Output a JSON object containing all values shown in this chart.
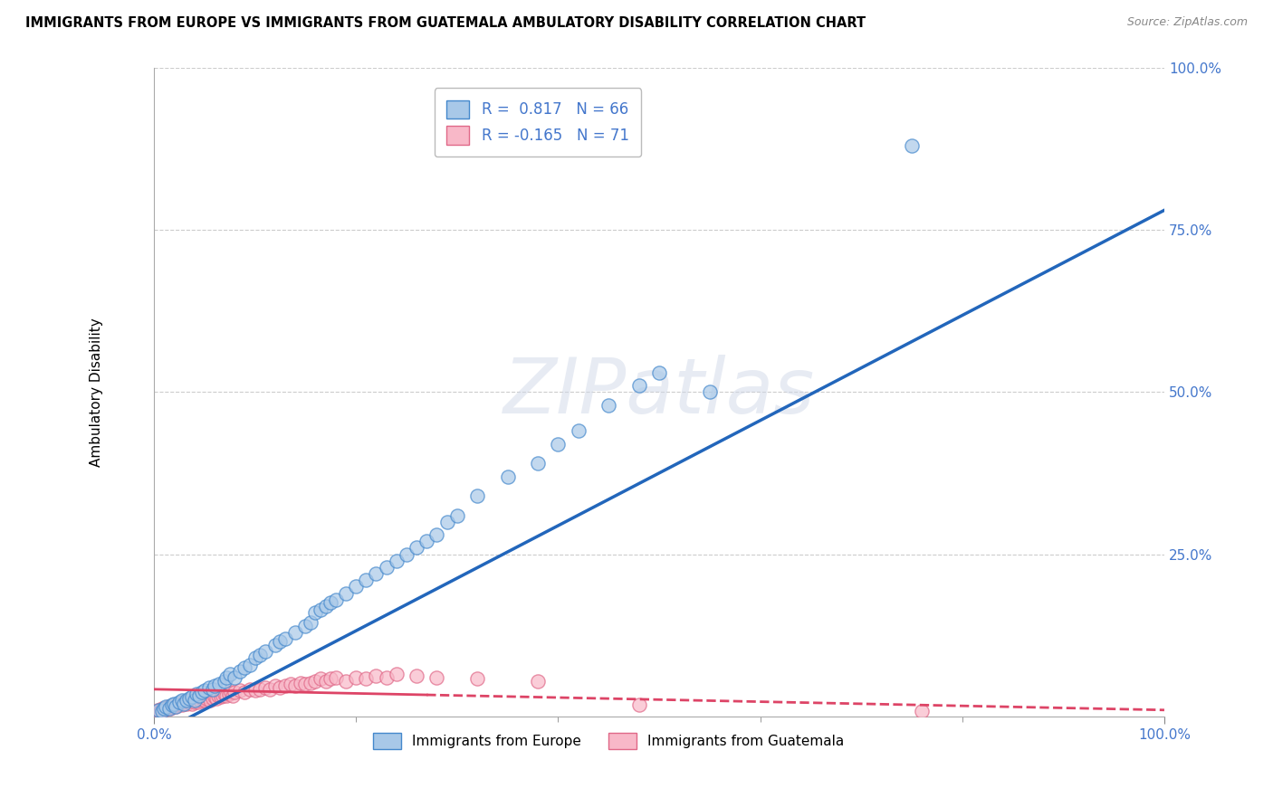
{
  "title": "IMMIGRANTS FROM EUROPE VS IMMIGRANTS FROM GUATEMALA AMBULATORY DISABILITY CORRELATION CHART",
  "source": "Source: ZipAtlas.com",
  "ylabel": "Ambulatory Disability",
  "xmin": 0.0,
  "xmax": 1.0,
  "ymin": 0.0,
  "ymax": 1.0,
  "europe_R": 0.817,
  "europe_N": 66,
  "guatemala_R": -0.165,
  "guatemala_N": 71,
  "europe_color": "#a8c8e8",
  "europe_edge_color": "#4488cc",
  "guatemala_color": "#f8b8c8",
  "guatemala_edge_color": "#e06888",
  "europe_line_color": "#2266bb",
  "guatemala_line_color": "#dd4466",
  "watermark_text": "ZIPatlas",
  "legend_label_europe": "Immigrants from Europe",
  "legend_label_guatemala": "Immigrants from Guatemala",
  "europe_x": [
    0.005,
    0.008,
    0.01,
    0.012,
    0.015,
    0.018,
    0.02,
    0.022,
    0.025,
    0.028,
    0.03,
    0.032,
    0.035,
    0.038,
    0.04,
    0.042,
    0.045,
    0.048,
    0.05,
    0.055,
    0.058,
    0.06,
    0.065,
    0.07,
    0.072,
    0.075,
    0.08,
    0.085,
    0.09,
    0.095,
    0.1,
    0.105,
    0.11,
    0.12,
    0.125,
    0.13,
    0.14,
    0.15,
    0.155,
    0.16,
    0.165,
    0.17,
    0.175,
    0.18,
    0.19,
    0.2,
    0.21,
    0.22,
    0.23,
    0.24,
    0.25,
    0.26,
    0.27,
    0.28,
    0.29,
    0.3,
    0.32,
    0.35,
    0.38,
    0.4,
    0.42,
    0.45,
    0.48,
    0.5,
    0.55,
    0.75
  ],
  "europe_y": [
    0.01,
    0.008,
    0.012,
    0.015,
    0.012,
    0.018,
    0.02,
    0.015,
    0.022,
    0.025,
    0.02,
    0.025,
    0.028,
    0.03,
    0.025,
    0.035,
    0.032,
    0.038,
    0.04,
    0.045,
    0.042,
    0.048,
    0.05,
    0.055,
    0.06,
    0.065,
    0.06,
    0.07,
    0.075,
    0.08,
    0.09,
    0.095,
    0.1,
    0.11,
    0.115,
    0.12,
    0.13,
    0.14,
    0.145,
    0.16,
    0.165,
    0.17,
    0.175,
    0.18,
    0.19,
    0.2,
    0.21,
    0.22,
    0.23,
    0.24,
    0.25,
    0.26,
    0.27,
    0.28,
    0.3,
    0.31,
    0.34,
    0.37,
    0.39,
    0.42,
    0.44,
    0.48,
    0.51,
    0.53,
    0.5,
    0.88
  ],
  "guatemala_x": [
    0.004,
    0.006,
    0.008,
    0.01,
    0.012,
    0.014,
    0.016,
    0.018,
    0.02,
    0.022,
    0.024,
    0.026,
    0.028,
    0.03,
    0.032,
    0.034,
    0.036,
    0.038,
    0.04,
    0.042,
    0.044,
    0.046,
    0.048,
    0.05,
    0.052,
    0.054,
    0.056,
    0.058,
    0.06,
    0.062,
    0.064,
    0.066,
    0.068,
    0.07,
    0.072,
    0.074,
    0.076,
    0.078,
    0.08,
    0.085,
    0.09,
    0.095,
    0.1,
    0.105,
    0.11,
    0.115,
    0.12,
    0.125,
    0.13,
    0.135,
    0.14,
    0.145,
    0.15,
    0.155,
    0.16,
    0.165,
    0.17,
    0.175,
    0.18,
    0.19,
    0.2,
    0.21,
    0.22,
    0.23,
    0.24,
    0.26,
    0.28,
    0.32,
    0.38,
    0.48,
    0.76
  ],
  "guatemala_y": [
    0.01,
    0.008,
    0.012,
    0.01,
    0.012,
    0.015,
    0.012,
    0.015,
    0.018,
    0.015,
    0.018,
    0.02,
    0.018,
    0.022,
    0.02,
    0.022,
    0.025,
    0.02,
    0.022,
    0.025,
    0.022,
    0.025,
    0.028,
    0.025,
    0.028,
    0.03,
    0.025,
    0.028,
    0.03,
    0.028,
    0.032,
    0.03,
    0.032,
    0.035,
    0.032,
    0.035,
    0.038,
    0.032,
    0.038,
    0.04,
    0.038,
    0.042,
    0.04,
    0.042,
    0.045,
    0.042,
    0.048,
    0.045,
    0.048,
    0.05,
    0.048,
    0.052,
    0.05,
    0.052,
    0.055,
    0.058,
    0.055,
    0.058,
    0.06,
    0.055,
    0.06,
    0.058,
    0.062,
    0.06,
    0.065,
    0.062,
    0.06,
    0.058,
    0.055,
    0.018,
    0.008
  ]
}
